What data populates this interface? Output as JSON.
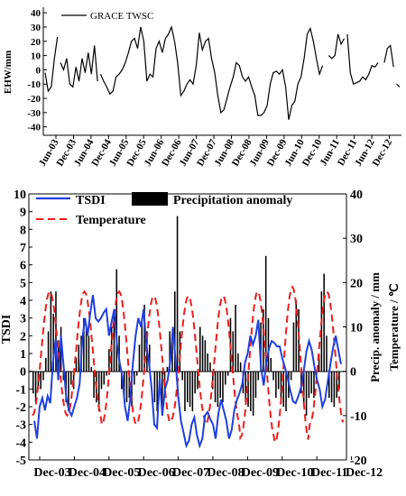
{
  "chart_data": [
    {
      "type": "line",
      "ylabel": "EHW/mm",
      "yticks": [
        40,
        30,
        20,
        10,
        0,
        -10,
        -20,
        -30,
        -40
      ],
      "ylim": [
        -44,
        42
      ],
      "xticks": [
        "Jun-03",
        "Dec-03",
        "Jun-04",
        "Dec-04",
        "Jun-05",
        "Dec-05",
        "Jun-06",
        "Dec-06",
        "Jun-07",
        "Dec-07",
        "Jun-08",
        "Dec-08",
        "Jun-09",
        "Dec-09",
        "Jun-10",
        "Dec-10",
        "Jun-11",
        "Dec-11",
        "Jun-12",
        "Dec-12"
      ],
      "legend": "top-left",
      "series": [
        {
          "name": "GRACE TWSC",
          "segments": [
            [
              [
                0,
                -2
              ],
              [
                1,
                -15
              ],
              [
                2,
                -12
              ],
              [
                3,
                8
              ],
              [
                4,
                23
              ]
            ],
            [
              [
                5,
                5
              ],
              [
                6,
                0
              ],
              [
                7,
                8
              ],
              [
                8,
                -10
              ],
              [
                9,
                -12
              ],
              [
                10,
                2
              ],
              [
                11,
                -8
              ],
              [
                12,
                8
              ],
              [
                13,
                -2
              ],
              [
                14,
                12
              ],
              [
                15,
                -3
              ],
              [
                16,
                17
              ],
              [
                17,
                -8
              ]
            ],
            [
              [
                18,
                -3
              ],
              [
                19,
                -8
              ],
              [
                20,
                -12
              ],
              [
                21,
                -17
              ],
              [
                22,
                -15
              ],
              [
                23,
                -5
              ],
              [
                24,
                -3
              ],
              [
                25,
                0
              ],
              [
                26,
                5
              ],
              [
                27,
                12
              ],
              [
                28,
                20
              ],
              [
                29,
                22
              ],
              [
                30,
                15
              ],
              [
                31,
                30
              ],
              [
                32,
                20
              ],
              [
                33,
                -8
              ],
              [
                34,
                -3
              ],
              [
                35,
                -5
              ],
              [
                36,
                15
              ],
              [
                37,
                20
              ],
              [
                38,
                12
              ],
              [
                39,
                22
              ],
              [
                40,
                25
              ],
              [
                41,
                30
              ],
              [
                42,
                20
              ],
              [
                43,
                5
              ],
              [
                44,
                -18
              ],
              [
                45,
                -15
              ],
              [
                46,
                -10
              ],
              [
                47,
                -7
              ],
              [
                48,
                -10
              ],
              [
                49,
                3
              ],
              [
                50,
                26
              ],
              [
                51,
                14
              ],
              [
                52,
                20
              ],
              [
                53,
                22
              ],
              [
                54,
                8
              ],
              [
                55,
                -2
              ],
              [
                56,
                -18
              ],
              [
                57,
                -30
              ],
              [
                58,
                -28
              ],
              [
                59,
                -20
              ],
              [
                60,
                -12
              ],
              [
                61,
                -5
              ],
              [
                62,
                5
              ],
              [
                63,
                3
              ],
              [
                64,
                -5
              ],
              [
                65,
                -8
              ],
              [
                66,
                -5
              ],
              [
                67,
                -12
              ],
              [
                68,
                -18
              ],
              [
                69,
                -32
              ],
              [
                70,
                -32
              ],
              [
                71,
                -30
              ],
              [
                72,
                -25
              ],
              [
                73,
                -10
              ],
              [
                74,
                -2
              ],
              [
                75,
                -1
              ],
              [
                76,
                -3
              ],
              [
                77,
                0
              ],
              [
                78,
                -12
              ],
              [
                79,
                -35
              ],
              [
                80,
                -25
              ],
              [
                81,
                -22
              ],
              [
                82,
                -10
              ],
              [
                83,
                -5
              ],
              [
                84,
                8
              ],
              [
                85,
                25
              ],
              [
                86,
                29
              ],
              [
                87,
                20
              ],
              [
                88,
                8
              ],
              [
                89,
                -3
              ],
              [
                90,
                3
              ]
            ],
            [
              [
                92,
                10
              ],
              [
                93,
                8
              ],
              [
                94,
                10
              ],
              [
                95,
                25
              ],
              [
                96,
                18
              ],
              [
                97,
                22
              ]
            ],
            [
              [
                98,
                25
              ],
              [
                99,
                -2
              ],
              [
                100,
                -10
              ],
              [
                101,
                -9
              ],
              [
                102,
                -8
              ],
              [
                103,
                -5
              ],
              [
                104,
                -7
              ],
              [
                105,
                -3
              ],
              [
                106,
                3
              ],
              [
                107,
                2
              ],
              [
                108,
                5
              ]
            ],
            [
              [
                110,
                5
              ],
              [
                111,
                15
              ],
              [
                112,
                17
              ],
              [
                113,
                2
              ]
            ],
            [
              [
                114,
                -10
              ],
              [
                115,
                -12
              ]
            ]
          ]
        }
      ]
    },
    {
      "type": "bar+line",
      "xticks": [
        "Dec-03",
        "Dec-04",
        "Dec-05",
        "Dec-06",
        "Dec-07",
        "Dec-08",
        "Dec-09",
        "Dec-10",
        "Dec-11",
        "Dec-12"
      ],
      "ylabel_left": "TSDI",
      "ylim_left": [
        -5,
        10
      ],
      "yticks_left": [
        10,
        9,
        8,
        7,
        6,
        5,
        4,
        3,
        2,
        1,
        0,
        -1,
        -2,
        -3,
        -4,
        -5
      ],
      "ylabel_right_lines": [
        "Precip. anomaly / mm",
        "Temperature / ℃"
      ],
      "ylim_right": [
        -20,
        40
      ],
      "yticks_right": [
        40,
        30,
        20,
        10,
        0,
        -10,
        -20
      ],
      "legend": "top-left",
      "legend_items": {
        "tsdi": "TSDI",
        "precip": "Precipitation anomaly",
        "temp": "Temperature"
      },
      "series": [
        {
          "name": "TSDI",
          "color": "#1f3fe0",
          "values": [
            -2.8,
            -3.8,
            -2,
            -1.5,
            -2.2,
            -1.4,
            -1.8,
            0.5,
            1.8,
            -0.5,
            2,
            0.3,
            -1.5,
            -2.2,
            -2.5,
            -2,
            -1.5,
            -0.7,
            1.8,
            3,
            2,
            3.3,
            4.3,
            3,
            2.8,
            3,
            3.3,
            3.5,
            2,
            2.8,
            3.5,
            1.5,
            0.5,
            -0.3,
            -2,
            -2.8,
            -1.5,
            0.5,
            2,
            3,
            2.5,
            3.5,
            1.5,
            0.5,
            -1,
            -3,
            -3.2,
            -0.4,
            -2.5,
            -1,
            -0.5,
            0.6,
            2.5,
            0.5,
            -1.5,
            -2.8,
            -3.5,
            -4.2,
            -3.9,
            -3,
            -2.6,
            -3.6,
            -4.2,
            -3.8,
            -2.5,
            -2.3,
            -2.7,
            -3,
            -3.8,
            -2.4,
            -1.6,
            -2.2,
            -2.8,
            -3.8,
            -3.3,
            -2.2,
            -1.6,
            -1.2,
            -0.7,
            0.5,
            1,
            2,
            1.5,
            2,
            2.9,
            0.2,
            -0.8,
            0.5,
            1.3,
            1.7,
            1.6,
            1.4,
            1.4,
            0.7,
            0.2,
            -0.4,
            -1.1,
            -1.7,
            -1.8,
            -1.4,
            -0.9,
            0,
            1.1,
            1.7,
            1.2,
            0.3,
            -0.5,
            -1,
            -2,
            -1.6,
            -0.6,
            0.4,
            1.3,
            2,
            1.2,
            0.4
          ]
        },
        {
          "name": "Temperature",
          "color": "#ee1c1c",
          "peaks": [
            18,
            18,
            18,
            17,
            17,
            17,
            18,
            19,
            18,
            18
          ],
          "troughs": [
            -10,
            -10,
            -12,
            -12,
            -11,
            -12,
            -15,
            -16,
            -12,
            -11
          ]
        },
        {
          "name": "Precipitation anomaly",
          "color": "#000000",
          "values": [
            -5,
            -7,
            -4,
            -4,
            -2,
            3,
            9,
            18,
            13,
            18,
            7,
            10,
            -2,
            -7,
            -9,
            -3,
            -4,
            3,
            6,
            8,
            12,
            10,
            8,
            1,
            -6,
            -7,
            -9,
            -4,
            -3,
            -1,
            5,
            10,
            14,
            23,
            8,
            -4,
            -6,
            -7,
            -6,
            -8,
            -3,
            -1,
            6,
            12,
            15,
            9,
            6,
            0,
            -7,
            -9,
            -4,
            -10,
            -6,
            1,
            9,
            8,
            18,
            35,
            9,
            -2,
            -9,
            -7,
            -8,
            -9,
            -5,
            -4,
            10,
            8,
            7,
            4,
            2,
            -4,
            -7,
            -8,
            -6,
            -7,
            -3,
            -1,
            12,
            9,
            15,
            4,
            2,
            -5,
            -7,
            -8,
            -9,
            -10,
            -6,
            -2,
            11,
            14,
            26,
            12,
            3,
            -2,
            -6,
            -4,
            -7,
            -8,
            -9,
            -6,
            -2,
            11,
            16,
            14,
            -5,
            -8,
            -10,
            -6,
            -5,
            -6,
            -2,
            4,
            18,
            22,
            8,
            -6,
            -7,
            -8,
            -6,
            -4
          ]
        }
      ]
    }
  ]
}
